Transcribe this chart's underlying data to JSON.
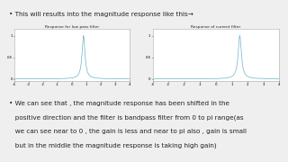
{
  "bg_color": "#efefef",
  "bullet1": "This will results into the magnitude response like this→",
  "bullet2_lines": [
    "We can see that , the magnitude response has been shifted in the",
    "positive direction and the filter is bandpass filter from 0 to pi range(as",
    "we can see near to 0 , the gain is less and near to pi also , gain is small",
    "but in the middle the magnitude response is taking high gain)"
  ],
  "plot1_title": "Response for low pass filter",
  "plot2_title": "Response of current filter",
  "plot_bg": "#ffffff",
  "plot_border": "#aaaaaa",
  "line_color": "#6ab4c8",
  "text_color": "#222222",
  "bullet_fontsize": 5.2,
  "title_fontsize": 3.2,
  "axis_fontsize": 2.8,
  "peak1": 0.8,
  "peak2": 1.5,
  "sharpness": 0.015
}
